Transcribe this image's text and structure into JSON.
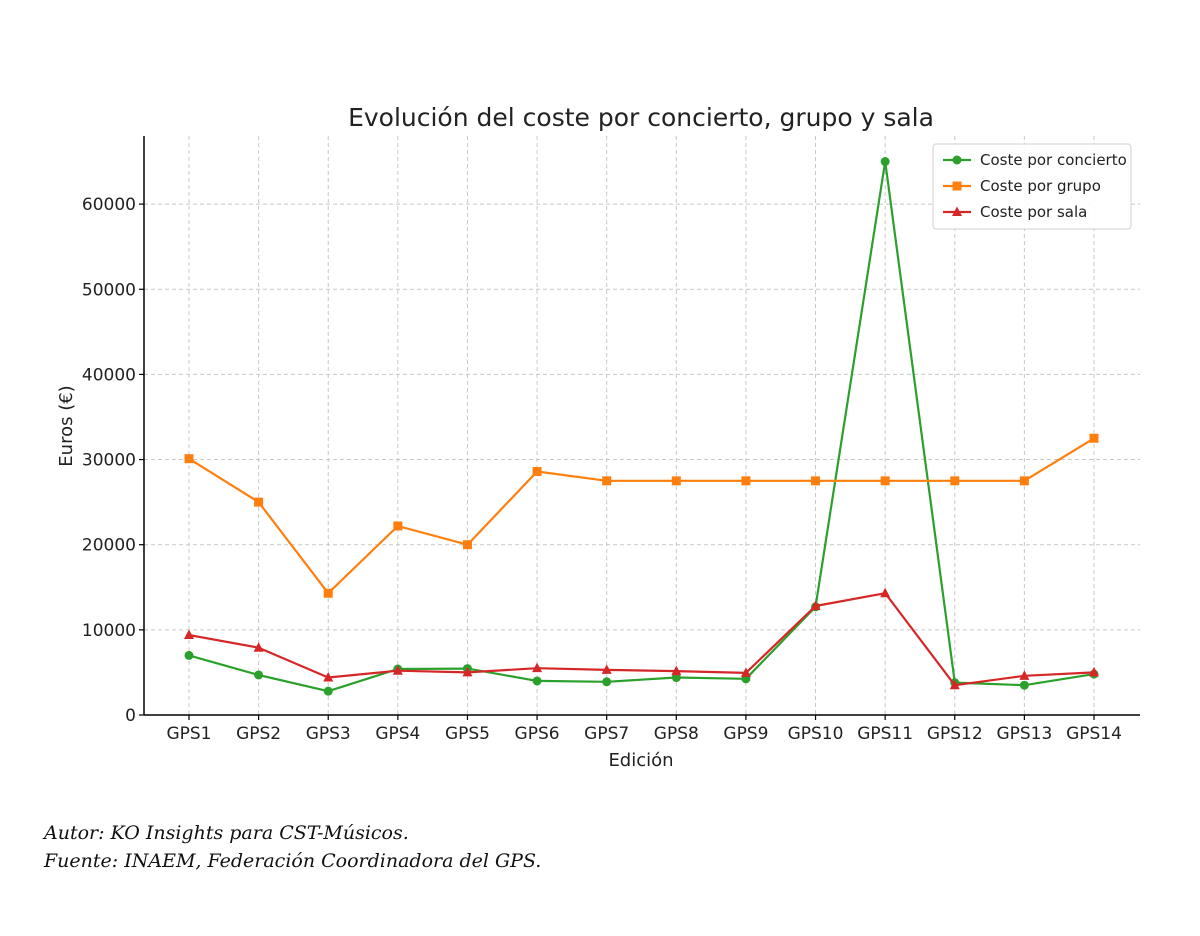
{
  "chart_data": {
    "type": "line",
    "title": "Evolución del coste por concierto, grupo y sala",
    "xlabel": "Edición",
    "ylabel": "Euros (€)",
    "categories": [
      "GPS1",
      "GPS2",
      "GPS3",
      "GPS4",
      "GPS5",
      "GPS6",
      "GPS7",
      "GPS8",
      "GPS9",
      "GPS10",
      "GPS11",
      "GPS12",
      "GPS13",
      "GPS14"
    ],
    "ylim": [
      0,
      68000
    ],
    "yticks": [
      0,
      10000,
      20000,
      30000,
      40000,
      50000,
      60000
    ],
    "grid": true,
    "legend_position": "top-right",
    "series": [
      {
        "name": "Coste por concierto",
        "color": "#2ca02c",
        "marker": "circle",
        "values": [
          7000,
          4700,
          2800,
          5400,
          5450,
          4000,
          3900,
          4400,
          4250,
          12700,
          65000,
          3800,
          3500,
          4800
        ]
      },
      {
        "name": "Coste por grupo",
        "color": "#ff7f0e",
        "marker": "square",
        "values": [
          30100,
          25000,
          14300,
          22200,
          20000,
          28600,
          27500,
          27500,
          27500,
          27500,
          27500,
          27500,
          27500,
          32500
        ]
      },
      {
        "name": "Coste por sala",
        "color": "#d62728",
        "marker": "triangle",
        "values": [
          9400,
          7900,
          4400,
          5200,
          5000,
          5500,
          5300,
          5150,
          4950,
          12800,
          14300,
          3500,
          4600,
          5000
        ]
      }
    ]
  },
  "captions": {
    "author": "Autor: KO Insights para CST-Músicos.",
    "source": "Fuente: INAEM, Federación Coordinadora del GPS."
  }
}
